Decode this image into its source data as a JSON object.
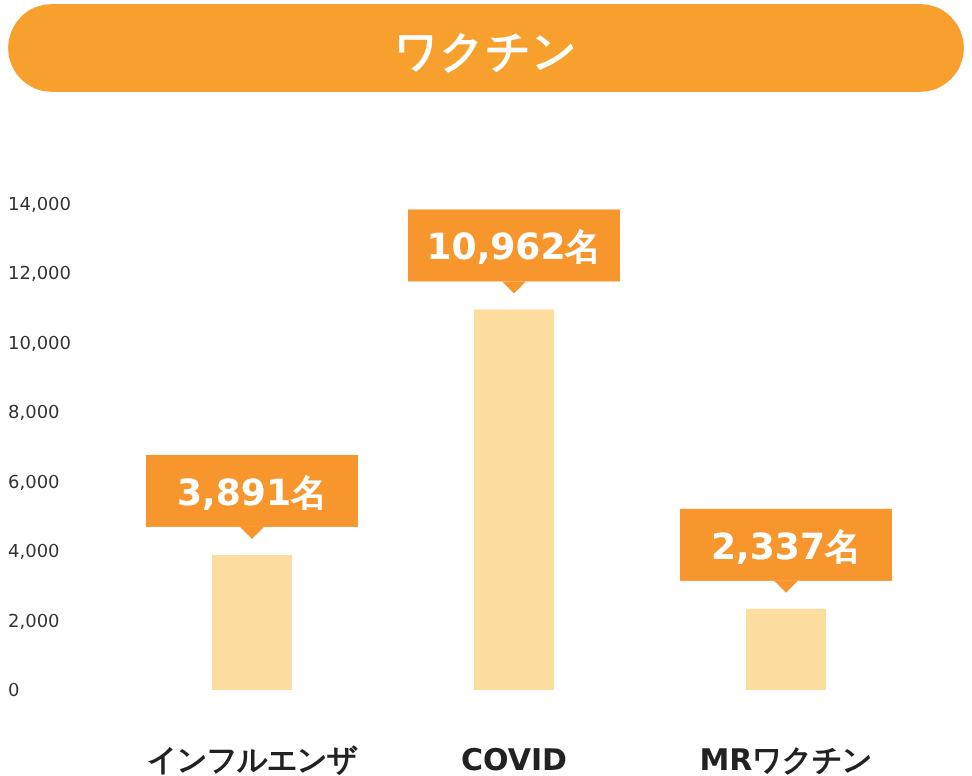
{
  "chart_data": {
    "type": "bar",
    "title": "ワクチン",
    "categories": [
      "インフルエンザ",
      "COVID",
      "MRワクチン"
    ],
    "values": [
      3891,
      10962,
      2337
    ],
    "value_labels": [
      "3,891名",
      "10,962名",
      "2,337名"
    ],
    "color": "#fddc9f",
    "ylim": [
      0,
      14000
    ],
    "yticks": [
      {
        "value": 0,
        "label": "0"
      },
      {
        "value": 2000,
        "label": "2,000"
      },
      {
        "value": 4000,
        "label": "4,000"
      },
      {
        "value": 6000,
        "label": "6,000"
      },
      {
        "value": 8000,
        "label": "8,000"
      },
      {
        "value": 10000,
        "label": "10,000"
      },
      {
        "value": 12000,
        "label": "12,000"
      },
      {
        "value": 14000,
        "label": "14,000"
      }
    ]
  }
}
